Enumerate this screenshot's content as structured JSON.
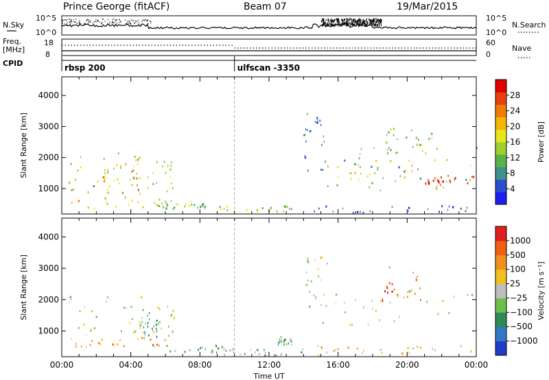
{
  "header": {
    "title": "Prince George (fitACF)",
    "beam": "Beam 07",
    "date": "19/Mar/2015"
  },
  "strip_panels": {
    "nsky_label": "N.Sky",
    "nsearch_label": "N.Search",
    "freq_label_line1": "Freq.",
    "freq_label_line2": "[MHz]",
    "nave_label": "Nave",
    "cpid_label": "CPID",
    "nsky_ticks": [
      "10^5",
      "10^0"
    ],
    "nsearch_ticks": [
      "10^5",
      "10^0"
    ],
    "freq_ticks": [
      "18",
      "8"
    ],
    "nave_ticks": [
      "60",
      "0"
    ]
  },
  "cpid_modes": [
    {
      "label": "rbsp 200",
      "start_hour": 0
    },
    {
      "label": "ulfscan -3350",
      "start_hour": 10
    }
  ],
  "chart_data": [
    {
      "type": "heatmap",
      "quantity": "Power",
      "xlabel": "Time UT",
      "ylabel": "Slant Range [km]",
      "xlim": [
        0,
        24
      ],
      "ylim": [
        180,
        4600
      ],
      "x_ticks": [
        "00:00",
        "04:00",
        "08:00",
        "12:00",
        "16:00",
        "20:00",
        "00:00"
      ],
      "y_ticks": [
        1000,
        2000,
        3000,
        4000
      ],
      "colorbar": {
        "label": "Power [dB]",
        "range": [
          0,
          32
        ],
        "tick_labels": [
          "4",
          "8",
          "12",
          "16",
          "20",
          "24",
          "28"
        ],
        "colors": [
          "#1e1ef0",
          "#2a4fd0",
          "#3f8f8c",
          "#5ab24a",
          "#9ccf2f",
          "#e6e61a",
          "#f5b800",
          "#f07d00",
          "#e84010",
          "#e00000"
        ]
      },
      "regions": [
        {
          "t": [
            0.3,
            4.5
          ],
          "r": [
            800,
            2000
          ],
          "level": 14
        },
        {
          "t": [
            1.8,
            4.5
          ],
          "r": [
            900,
            2100
          ],
          "level": 22
        },
        {
          "t": [
            4.0,
            6.4
          ],
          "r": [
            650,
            1900
          ],
          "level": 12
        },
        {
          "t": [
            0.3,
            7.5
          ],
          "r": [
            300,
            700
          ],
          "level": 18
        },
        {
          "t": [
            5.5,
            9.0
          ],
          "r": [
            300,
            500
          ],
          "level": 12
        },
        {
          "t": [
            9.0,
            13.5
          ],
          "r": [
            180,
            400
          ],
          "level": 14
        },
        {
          "t": [
            14.0,
            15.2
          ],
          "r": [
            1500,
            3400
          ],
          "level": 6
        },
        {
          "t": [
            14.8,
            24
          ],
          "r": [
            900,
            2300
          ],
          "level": 10
        },
        {
          "t": [
            15.0,
            23.8
          ],
          "r": [
            1200,
            1900
          ],
          "level": 18
        },
        {
          "t": [
            21.0,
            24
          ],
          "r": [
            1000,
            1400
          ],
          "level": 28
        },
        {
          "t": [
            18.0,
            21.5
          ],
          "r": [
            1900,
            2900
          ],
          "level": 12
        },
        {
          "t": [
            14.5,
            24
          ],
          "r": [
            180,
            400
          ],
          "level": 4
        }
      ]
    },
    {
      "type": "heatmap",
      "quantity": "Velocity",
      "xlabel": "Time UT",
      "ylabel": "Slant Range [km]",
      "xlim": [
        0,
        24
      ],
      "ylim": [
        180,
        4600
      ],
      "x_ticks": [
        "00:00",
        "04:00",
        "08:00",
        "12:00",
        "16:00",
        "20:00",
        "00:00"
      ],
      "y_ticks": [
        1000,
        2000,
        3000,
        4000
      ],
      "colorbar": {
        "label": "Velocity [m s⁻¹]",
        "tick_labels": [
          "1000",
          "500",
          "100",
          "25",
          "−25",
          "−100",
          "−500",
          "−1000"
        ],
        "colors": [
          "#1f3cc8",
          "#2e7bc4",
          "#2e8b57",
          "#6cc04a",
          "#bebebe",
          "#f0c020",
          "#f09020",
          "#f06010",
          "#e02020"
        ]
      },
      "regions": [
        {
          "t": [
            0.3,
            4.8
          ],
          "r": [
            800,
            2100
          ],
          "level": 4
        },
        {
          "t": [
            3.5,
            6.5
          ],
          "r": [
            800,
            1800
          ],
          "level": 4
        },
        {
          "t": [
            4.5,
            5.5
          ],
          "r": [
            700,
            1400
          ],
          "level": 2
        },
        {
          "t": [
            0.3,
            6.0
          ],
          "r": [
            400,
            750
          ],
          "level": 6
        },
        {
          "t": [
            5.0,
            9.5
          ],
          "r": [
            250,
            550
          ],
          "level": 3
        },
        {
          "t": [
            9.0,
            14.0
          ],
          "r": [
            180,
            380
          ],
          "level": 3
        },
        {
          "t": [
            12.5,
            13.3
          ],
          "r": [
            500,
            800
          ],
          "level": 3
        },
        {
          "t": [
            14.0,
            15.5
          ],
          "r": [
            1700,
            3400
          ],
          "level": 4
        },
        {
          "t": [
            15.0,
            24
          ],
          "r": [
            1100,
            2300
          ],
          "level": 4
        },
        {
          "t": [
            18.5,
            20.8
          ],
          "r": [
            1900,
            3000
          ],
          "level": 7
        },
        {
          "t": [
            14.5,
            24
          ],
          "r": [
            180,
            500
          ],
          "level": 5
        }
      ]
    }
  ]
}
